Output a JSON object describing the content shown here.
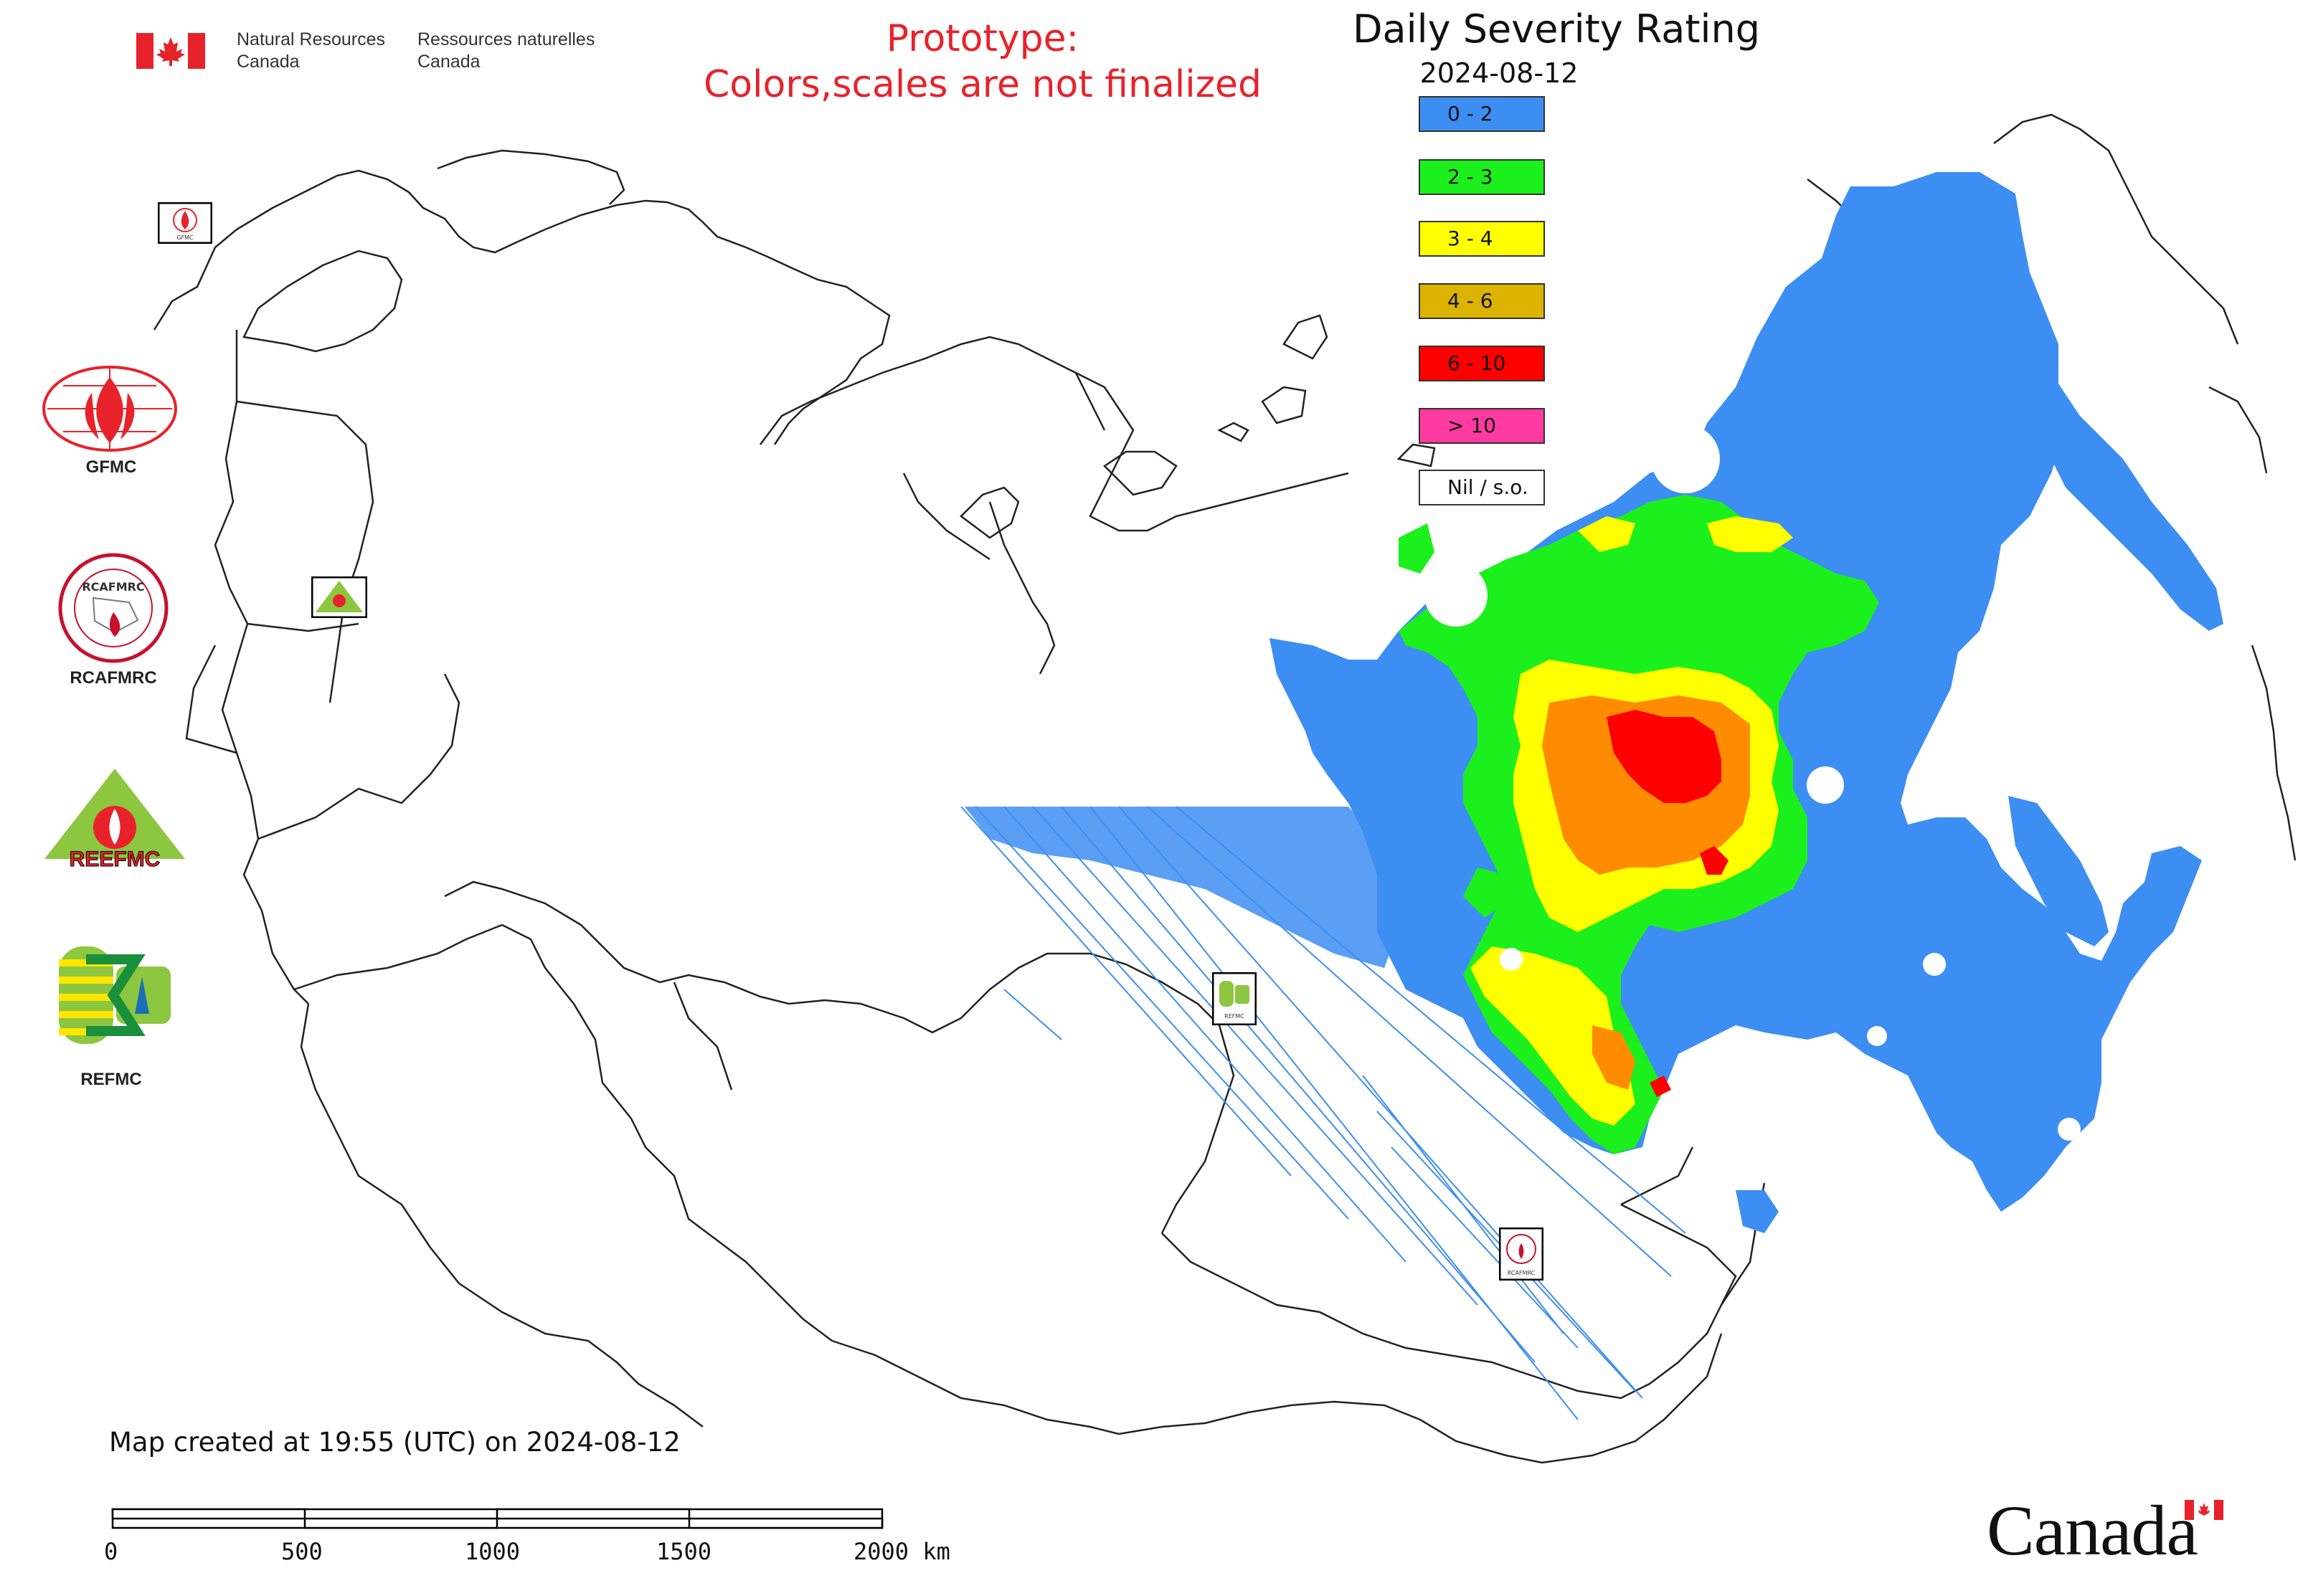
{
  "header": {
    "dept_en_line1": "Natural Resources",
    "dept_en_line2": "Canada",
    "dept_fr_line1": "Ressources naturelles",
    "dept_fr_line2": "Canada"
  },
  "prototype_note": {
    "line1": "Prototype:",
    "line2": "Colors,scales are not finalized"
  },
  "map": {
    "title": "Daily Severity Rating",
    "date": "2024-08-12",
    "created_text": "Map created at 19:55 (UTC) on 2024-08-12"
  },
  "legend": [
    {
      "label": "0 - 2",
      "color": "#3d8ef2"
    },
    {
      "label": "2 - 3",
      "color": "#1cf01c"
    },
    {
      "label": "3 - 4",
      "color": "#ffff00"
    },
    {
      "label": "4 - 6",
      "color": "#dcb400"
    },
    {
      "label": "6 - 10",
      "color": "#ff0000"
    },
    {
      "label": "> 10",
      "color": "#ff3aa0"
    },
    {
      "label": "Nil / s.o.",
      "color": "#ffffff"
    }
  ],
  "logos": {
    "gfmc": "GFMC",
    "rcafmrc": "RCAFMRC",
    "reefmc": "REEFMC",
    "refmc": "REFMC",
    "small_gfmc": "GFMC",
    "small_refmc": "REFMC",
    "small_rcafmrc": "RCAFMRC"
  },
  "scale_bar": {
    "ticks": [
      "0",
      "500",
      "1000",
      "1500",
      "2000 km"
    ]
  },
  "wordmark": "Canada",
  "colors": {
    "prototype_text": "#e8222b",
    "low": "#3d8ef2",
    "moderate": "#1cf01c",
    "high": "#ffff00",
    "very_high": "#dcb400",
    "extreme": "#ff0000",
    "extreme_plus": "#ff3aa0"
  }
}
